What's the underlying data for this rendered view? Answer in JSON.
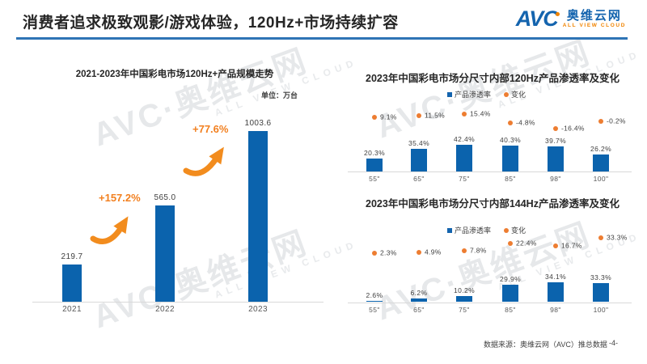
{
  "header": {
    "title": "消费者追求极致观影/游戏体验，120Hz+市场持续扩容",
    "logo": {
      "avc": "AVC",
      "name": "奥维云网",
      "tagline": "ALL VIEW CLOUD"
    }
  },
  "watermark": {
    "main": "AVC·奥维云网",
    "sub": "ALL VIEW CLOUD"
  },
  "colors": {
    "bar_blue": "#0b63ad",
    "accent_orange": "#ed7d31",
    "arrow_orange": "#f28020",
    "header_line_blue": "#2e74b5",
    "logo_blue": "#1464ae",
    "logo_orange": "#f08300",
    "axis_gray": "#d9d9d9"
  },
  "chart_data": [
    {
      "type": "bar",
      "title": "2021-2023年中国彩电市场120Hz+产品规模走势",
      "unit_label": "单位：万台",
      "categories": [
        "2021",
        "2022",
        "2023"
      ],
      "values": [
        219.7,
        565.0,
        1003.6
      ],
      "value_labels": [
        "219.7",
        "565.0",
        "1003.6"
      ],
      "growth": [
        {
          "label": "+157.2%",
          "from": "2021",
          "to": "2022"
        },
        {
          "label": "+77.6%",
          "from": "2022",
          "to": "2023"
        }
      ],
      "ylim": [
        0,
        1100
      ],
      "grid": false,
      "bar_color": "#0b63ad"
    },
    {
      "type": "bar+scatter",
      "title": "2023年中国彩电市场分尺寸内部120Hz产品渗透率及变化",
      "categories": [
        "55\"",
        "65\"",
        "75\"",
        "85\"",
        "98\"",
        "100\""
      ],
      "legend_position": "top",
      "grid": false,
      "series": [
        {
          "name": "产品渗透率",
          "type": "bar",
          "color": "#0b63ad",
          "values": [
            20.3,
            35.4,
            42.4,
            40.3,
            39.7,
            26.2
          ],
          "labels": [
            "20.3%",
            "35.4%",
            "42.4%",
            "40.3%",
            "39.7%",
            "26.2%"
          ]
        },
        {
          "name": "变化",
          "type": "scatter",
          "color": "#ed7d31",
          "values": [
            9.1,
            11.5,
            15.4,
            -4.8,
            -16.4,
            -0.2
          ],
          "labels": [
            "9.1%",
            "11.5%",
            "15.4%",
            "-4.8%",
            "-16.4%",
            "-0.2%"
          ]
        }
      ]
    },
    {
      "type": "bar+scatter",
      "title": "2023年中国彩电市场分尺寸内部144Hz产品渗透率及变化",
      "categories": [
        "55\"",
        "65\"",
        "75\"",
        "85\"",
        "98\"",
        "100\""
      ],
      "legend_position": "top",
      "grid": false,
      "series": [
        {
          "name": "产品渗透率",
          "type": "bar",
          "color": "#0b63ad",
          "values": [
            2.6,
            6.2,
            10.2,
            29.9,
            34.1,
            33.3
          ],
          "labels": [
            "2.6%",
            "6.2%",
            "10.2%",
            "29.9%",
            "34.1%",
            "33.3%"
          ]
        },
        {
          "name": "变化",
          "type": "scatter",
          "color": "#ed7d31",
          "values": [
            2.3,
            4.9,
            7.8,
            22.4,
            16.7,
            33.3
          ],
          "labels": [
            "2.3%",
            "4.9%",
            "7.8%",
            "22.4%",
            "16.7%",
            "33.3%"
          ]
        }
      ]
    }
  ],
  "footer": {
    "source": "数据来源：奥维云网（AVC）推总数据",
    "page": "-4-"
  }
}
